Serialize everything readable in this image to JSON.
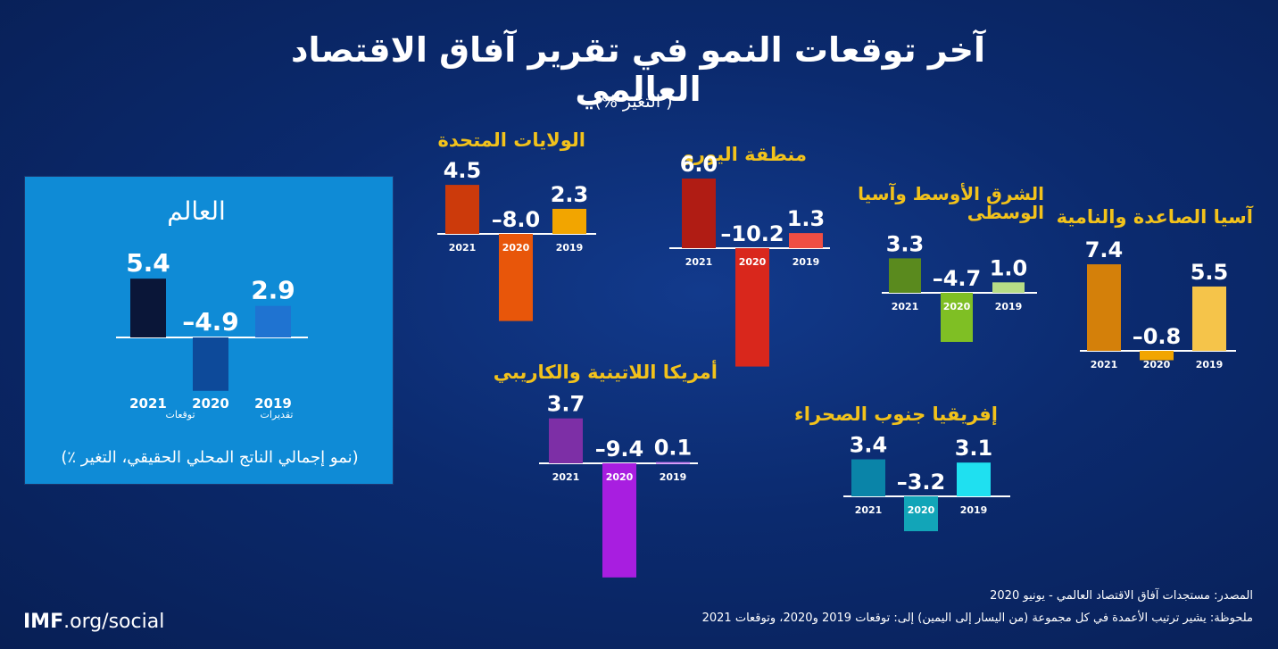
{
  "header": {
    "title": "آخر توقعات النمو في تقرير آفاق الاقتصاد العالمي",
    "subtitle": "( التغير %)"
  },
  "world_panel": {
    "title": "العالم",
    "projection_label": "توقعات",
    "estimate_label": "تقديرات",
    "note": "(نمو إجمالي الناتج المحلي الحقيقي، التغير ٪)"
  },
  "footer": {
    "brand_bold": "IMF",
    "brand_rest": ".org/social",
    "source": "المصدر: مستجدات آفاق الاقتصاد العالمي - يونيو 2020",
    "note": "ملحوظة: يشير ترتيب الأعمدة في كل مجموعة (من اليسار إلى اليمين) إلى: توقعات 2019 و2020، وتوقعات 2021"
  },
  "chart_data": [
    {
      "type": "bar",
      "title": "العالم",
      "categories": [
        "2021",
        "2020",
        "2019"
      ],
      "values": [
        5.4,
        -4.9,
        2.9
      ],
      "labels": [
        "5.4",
        "–4.9",
        "2.9"
      ],
      "colors": [
        "#0a1638",
        "#0d4a9a",
        "#1f73d1"
      ]
    },
    {
      "type": "bar",
      "title": "الولايات المتحدة",
      "categories": [
        "2021",
        "2020",
        "2019"
      ],
      "values": [
        4.5,
        -8.0,
        2.3
      ],
      "labels": [
        "4.5",
        "–8.0",
        "2.3"
      ],
      "colors": [
        "#cc3a0b",
        "#e8560a",
        "#f2a500"
      ]
    },
    {
      "type": "bar",
      "title": "منطقة اليورو",
      "categories": [
        "2021",
        "2020",
        "2019"
      ],
      "values": [
        6.0,
        -10.2,
        1.3
      ],
      "labels": [
        "6.0",
        "–10.2",
        "1.3"
      ],
      "colors": [
        "#b01c14",
        "#d9271c",
        "#ef4e43"
      ]
    },
    {
      "type": "bar",
      "title": "الشرق الأوسط وآسيا الوسطى",
      "categories": [
        "2021",
        "2020",
        "2019"
      ],
      "values": [
        3.3,
        -4.7,
        1.0
      ],
      "labels": [
        "3.3",
        "–4.7",
        "1.0"
      ],
      "colors": [
        "#5a8a1e",
        "#7fbf24",
        "#b7dd86"
      ]
    },
    {
      "type": "bar",
      "title": "آسيا الصاعدة والنامية",
      "categories": [
        "2021",
        "2020",
        "2019"
      ],
      "values": [
        7.4,
        -0.8,
        5.5
      ],
      "labels": [
        "7.4",
        "–0.8",
        "5.5"
      ],
      "colors": [
        "#d4800a",
        "#f2a500",
        "#f5c44a"
      ]
    },
    {
      "type": "bar",
      "title": "أمريكا اللاتينية والكاريبي",
      "categories": [
        "2021",
        "2020",
        "2019"
      ],
      "values": [
        3.7,
        -9.4,
        0.1
      ],
      "labels": [
        "3.7",
        "–9.4",
        "0.1"
      ],
      "colors": [
        "#7d2fa6",
        "#a81ee0",
        "#c97df2"
      ]
    },
    {
      "type": "bar",
      "title": "إفريقيا جنوب الصحراء",
      "categories": [
        "2021",
        "2020",
        "2019"
      ],
      "values": [
        3.4,
        -3.2,
        3.1
      ],
      "labels": [
        "3.4",
        "–3.2",
        "3.1"
      ],
      "colors": [
        "#0a84a8",
        "#12a5b8",
        "#1fe0f0"
      ]
    }
  ]
}
